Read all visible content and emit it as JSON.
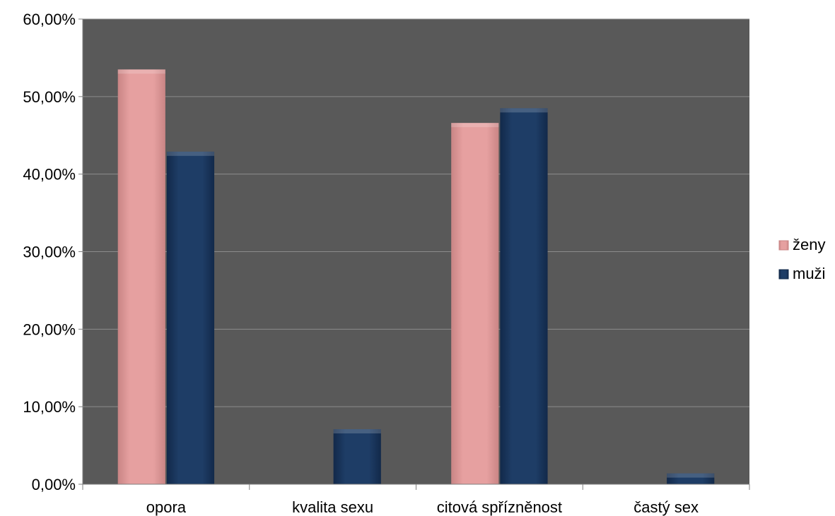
{
  "chart_data": {
    "type": "bar",
    "categories": [
      "opora",
      "kvalita sexu",
      "citová spřízněnost",
      "častý sex"
    ],
    "series": [
      {
        "name": "ženy",
        "values": [
          53.5,
          0,
          46.6,
          0
        ],
        "color": "#e6a0a0"
      },
      {
        "name": "muži",
        "values": [
          42.9,
          7.1,
          48.5,
          1.4
        ],
        "color": "#1b3a63"
      }
    ],
    "ylim": [
      0,
      60
    ],
    "yticks": [
      0,
      10,
      20,
      30,
      40,
      50,
      60
    ],
    "ytick_labels": [
      "0,00%",
      "10,00%",
      "20,00%",
      "30,00%",
      "40,00%",
      "50,00%",
      "60,00%"
    ],
    "title": "",
    "xlabel": "",
    "ylabel": "",
    "grid": true,
    "legend_position": "right",
    "plot_background": "#595959",
    "gridline_color": "#8c8c8c"
  }
}
